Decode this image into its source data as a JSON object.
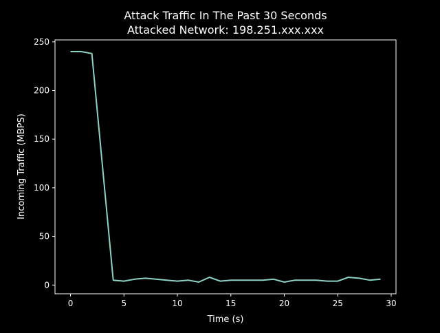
{
  "chart_data": {
    "type": "line",
    "title": "Attack Traffic In The Past 30 Seconds",
    "subtitle": "Attacked Network: 198.251.xxx.xxx",
    "xlabel": "Time (s)",
    "ylabel": "Incoming Traffic (MBPS)",
    "xlim": [
      -1.45,
      30.45
    ],
    "ylim": [
      -9,
      252
    ],
    "xticks": [
      0,
      5,
      10,
      15,
      20,
      25,
      30
    ],
    "yticks": [
      0,
      50,
      100,
      150,
      200,
      250
    ],
    "grid": false,
    "line_color": "#8dd3c7",
    "background": "#000000",
    "x": [
      0,
      1,
      2,
      3,
      4,
      5,
      6,
      7,
      8,
      9,
      10,
      11,
      12,
      13,
      14,
      15,
      16,
      17,
      18,
      19,
      20,
      21,
      22,
      23,
      24,
      25,
      26,
      27,
      28,
      29
    ],
    "values": [
      240,
      240,
      238,
      121,
      5,
      4,
      6,
      7,
      6,
      5,
      4,
      5,
      3,
      8,
      4,
      5,
      5,
      5,
      5,
      6,
      3,
      5,
      5,
      5,
      4,
      4,
      8,
      7,
      5,
      6
    ]
  }
}
